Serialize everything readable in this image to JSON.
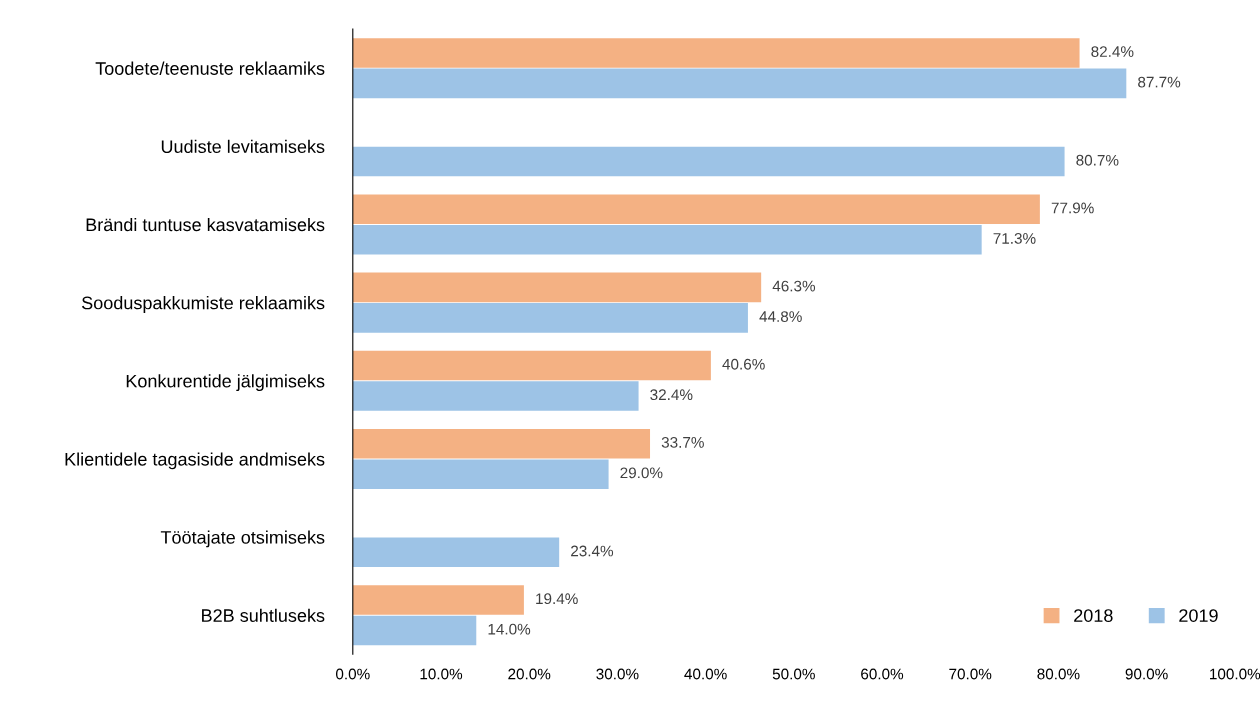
{
  "chart_data": {
    "type": "bar",
    "orientation": "horizontal",
    "categories": [
      "Toodete/teenuste reklaamiks",
      "Uudiste levitamiseks",
      "Brändi tuntuse kasvatamiseks",
      "Sooduspakkumiste reklaamiks",
      "Konkurentide jälgimiseks",
      "Klientidele tagasiside andmiseks",
      "Töötajate otsimiseks",
      "B2B suhtluseks"
    ],
    "series": [
      {
        "name": "2018",
        "color": "#f4b183",
        "values": [
          82.4,
          null,
          77.9,
          46.3,
          40.6,
          33.7,
          null,
          19.4
        ],
        "value_labels": [
          "82.4%",
          null,
          "77.9%",
          "46.3%",
          "40.6%",
          "33.7%",
          null,
          "19.4%"
        ]
      },
      {
        "name": "2019",
        "color": "#9dc3e6",
        "values": [
          87.7,
          80.7,
          71.3,
          44.8,
          32.4,
          29.0,
          23.4,
          14.0
        ],
        "value_labels": [
          "87.7%",
          "80.7%",
          "71.3%",
          "44.8%",
          "32.4%",
          "29.0%",
          "23.4%",
          "14.0%"
        ]
      }
    ],
    "xlim": [
      0,
      100
    ],
    "xticks": [
      {
        "value": 0,
        "label": "0.0%"
      },
      {
        "value": 10,
        "label": "10.0%"
      },
      {
        "value": 20,
        "label": "20.0%"
      },
      {
        "value": 30,
        "label": "30.0%"
      },
      {
        "value": 40,
        "label": "40.0%"
      },
      {
        "value": 50,
        "label": "50.0%"
      },
      {
        "value": 60,
        "label": "60.0%"
      },
      {
        "value": 70,
        "label": "70.0%"
      },
      {
        "value": 80,
        "label": "80.0%"
      },
      {
        "value": 90,
        "label": "90.0%"
      },
      {
        "value": 100,
        "label": "100.0%"
      }
    ],
    "grid": false,
    "legend": "bottom right"
  }
}
